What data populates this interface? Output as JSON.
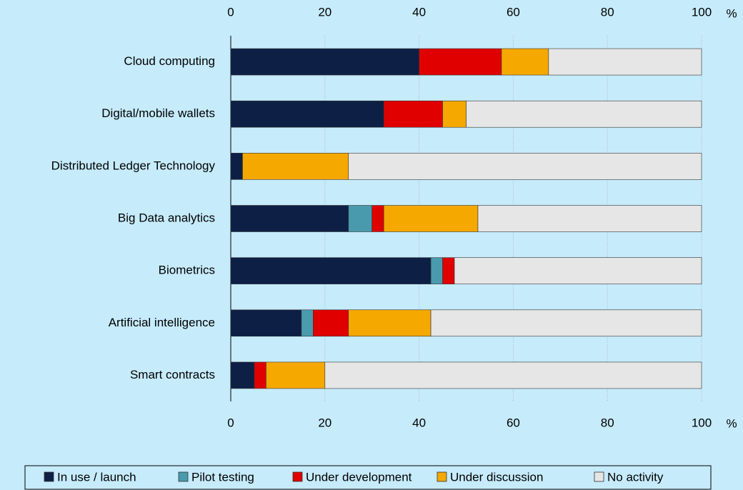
{
  "chart_data": {
    "type": "stacked-bar-horizontal",
    "categories": [
      "Cloud computing",
      "Digital/mobile wallets",
      "Distributed Ledger Technology",
      "Big Data analytics",
      "Biometrics",
      "Artificial intelligence",
      "Smart contracts"
    ],
    "series": [
      {
        "name": "In use / launch",
        "color": "#0d1f45",
        "values": [
          40,
          32.5,
          2.5,
          25,
          42.5,
          15,
          5
        ]
      },
      {
        "name": "Pilot testing",
        "color": "#4a9aad",
        "values": [
          0,
          0,
          0,
          5,
          2.5,
          2.5,
          0
        ]
      },
      {
        "name": "Under development",
        "color": "#e00000",
        "values": [
          17.5,
          12.5,
          0,
          2.5,
          2.5,
          7.5,
          2.5
        ]
      },
      {
        "name": "Under discussion",
        "color": "#f5a800",
        "values": [
          10,
          5,
          22.5,
          20,
          0,
          17.5,
          12.5
        ]
      },
      {
        "name": "No activity",
        "color": "#e6e6e6",
        "values": [
          32.5,
          50,
          75,
          47.5,
          52.5,
          57.5,
          80
        ]
      }
    ],
    "x_unit": "%",
    "xlim": [
      0,
      100
    ],
    "xticks": [
      0,
      20,
      40,
      60,
      80,
      100
    ],
    "grid": true
  }
}
